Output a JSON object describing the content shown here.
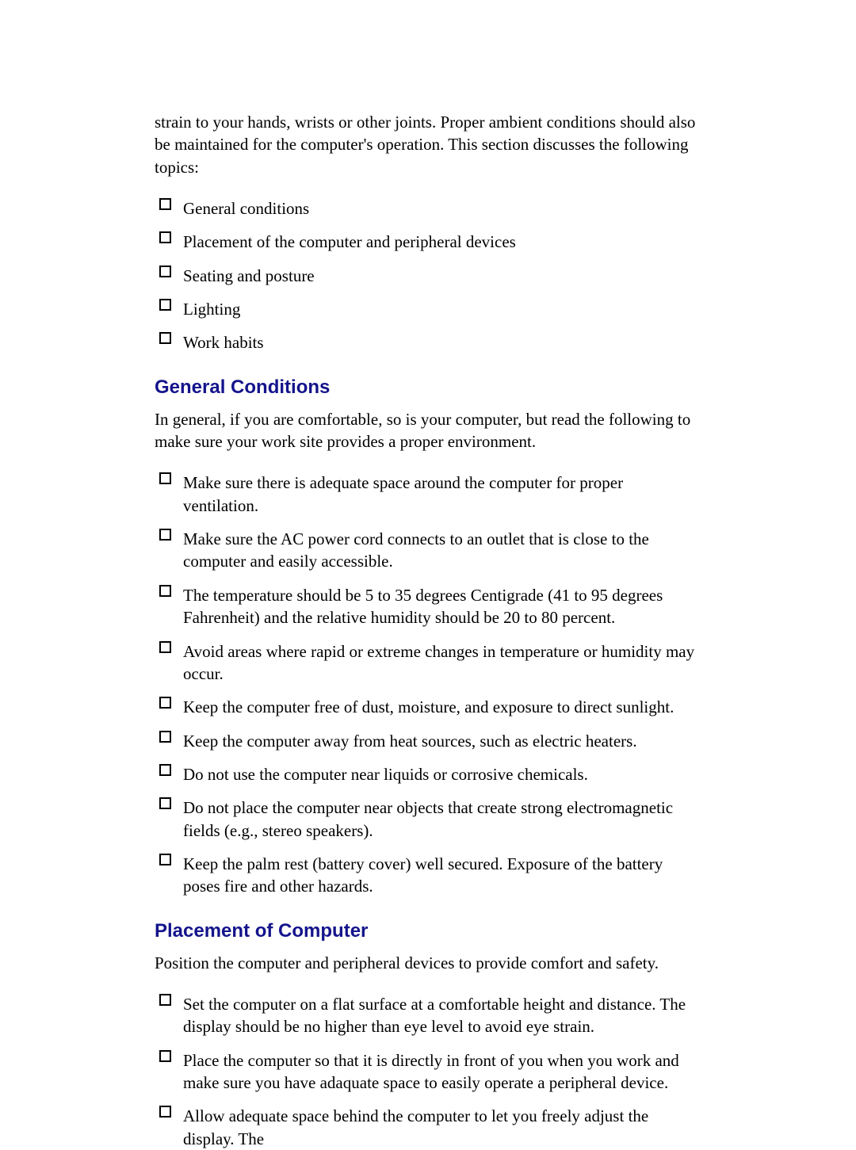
{
  "colors": {
    "heading_color": "#14148c",
    "text_color": "#000000",
    "background_color": "#ffffff",
    "checkbox_border_color": "#000000"
  },
  "typography": {
    "body_font": "Times New Roman",
    "heading_font": "Arial",
    "body_size_pt": 16,
    "heading_size_pt": 18
  },
  "intro": {
    "text": "strain to your hands, wrists or other joints. Proper ambient conditions should also be maintained for the computer's operation. This section discusses the following topics:"
  },
  "topics": {
    "items": [
      "General conditions",
      "Placement of the computer and peripheral devices",
      "Seating and posture",
      "Lighting",
      "Work habits"
    ]
  },
  "section1": {
    "heading": "General Conditions",
    "para": "In general, if you are comfortable, so is your computer, but read the following to make sure your work site provides a proper environment.",
    "items": [
      "Make sure there is adequate space around the computer for proper ventilation.",
      "Make sure the AC power cord connects to an outlet that is close to the computer and easily accessible.",
      "The temperature should be 5 to 35 degrees Centigrade (41 to 95 degrees Fahrenheit) and the relative humidity should be 20 to 80 percent.",
      "Avoid areas where rapid or extreme changes in temperature or humidity may occur.",
      "Keep the computer free of dust, moisture, and exposure to direct sunlight.",
      "Keep the computer away from heat sources, such as electric heaters.",
      "Do not use the computer near liquids or corrosive chemicals.",
      "Do not place the computer near objects that create strong electromagnetic fields (e.g., stereo speakers).",
      "Keep the palm rest (battery cover) well secured. Exposure of the battery poses fire and other hazards."
    ]
  },
  "section2": {
    "heading": "Placement of Computer",
    "para": "Position the computer and peripheral devices to provide comfort and safety.",
    "items": [
      "Set the computer on a flat surface at a comfortable height and distance. The display should be no higher than eye level to avoid eye strain.",
      "Place the computer so that it is directly in front of you when you work and make sure you have adaquate space to easily operate a peripheral device.",
      "Allow adequate space behind the computer to let you freely adjust the display. The"
    ]
  }
}
